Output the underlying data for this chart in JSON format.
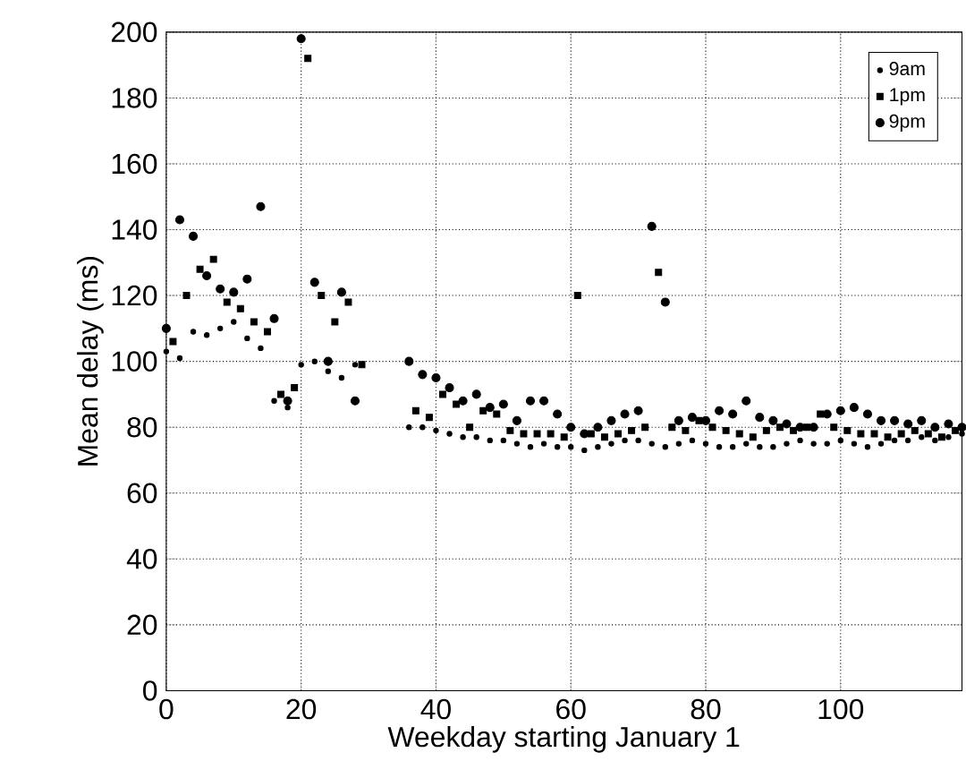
{
  "chart_data": {
    "type": "scatter",
    "xlabel": "Weekday starting January 1",
    "ylabel": "Mean delay (ms)",
    "xlim": [
      0,
      118
    ],
    "ylim": [
      0,
      200
    ],
    "xticks": [
      0,
      20,
      40,
      60,
      80,
      100
    ],
    "yticks": [
      0,
      20,
      40,
      60,
      80,
      100,
      120,
      140,
      160,
      180,
      200
    ],
    "grid": true,
    "legend": "top right",
    "series": [
      {
        "name": "9am",
        "color": "#000000",
        "marker": "circle",
        "x": [
          0,
          2,
          4,
          6,
          8,
          10,
          12,
          14,
          16,
          18,
          20,
          22,
          24,
          26,
          28,
          36,
          38,
          40,
          42,
          44,
          46,
          48,
          50,
          52,
          54,
          56,
          58,
          60,
          62,
          64,
          66,
          68,
          70,
          72,
          74,
          76,
          78,
          80,
          82,
          84,
          86,
          88,
          90,
          92,
          94,
          96,
          98,
          100,
          102,
          104,
          106,
          108,
          110,
          112,
          114,
          116,
          118
        ],
        "values": [
          103,
          101,
          109,
          108,
          110,
          112,
          107,
          104,
          88,
          86,
          99,
          100,
          97,
          95,
          99,
          80,
          80,
          79,
          78,
          77,
          77,
          76,
          76,
          75,
          74,
          75,
          74,
          74,
          73,
          74,
          75,
          76,
          76,
          75,
          74,
          75,
          76,
          75,
          74,
          74,
          75,
          74,
          74,
          75,
          76,
          75,
          75,
          76,
          75,
          74,
          75,
          76,
          76,
          77,
          76,
          77,
          78
        ]
      },
      {
        "name": "1pm",
        "color": "#000000",
        "marker": "square",
        "x": [
          1,
          3,
          5,
          7,
          9,
          11,
          13,
          15,
          17,
          19,
          21,
          23,
          25,
          27,
          29,
          37,
          39,
          41,
          43,
          45,
          47,
          49,
          51,
          53,
          55,
          57,
          59,
          61,
          63,
          65,
          67,
          69,
          71,
          73,
          75,
          77,
          79,
          81,
          83,
          85,
          87,
          89,
          91,
          93,
          95,
          97,
          99,
          101,
          103,
          105,
          107,
          109,
          111,
          113,
          115,
          117
        ],
        "values": [
          106,
          120,
          128,
          131,
          118,
          116,
          112,
          109,
          90,
          92,
          192,
          120,
          112,
          118,
          99,
          85,
          83,
          90,
          87,
          80,
          85,
          84,
          79,
          78,
          78,
          78,
          77,
          120,
          78,
          77,
          78,
          79,
          80,
          127,
          80,
          79,
          82,
          80,
          79,
          78,
          77,
          79,
          80,
          79,
          80,
          84,
          80,
          79,
          78,
          78,
          77,
          78,
          79,
          78,
          77,
          79
        ]
      },
      {
        "name": "9pm",
        "color": "#000000",
        "marker": "circle",
        "x": [
          0,
          2,
          4,
          6,
          8,
          10,
          12,
          14,
          16,
          18,
          20,
          22,
          24,
          26,
          28,
          36,
          38,
          40,
          42,
          44,
          46,
          48,
          50,
          52,
          54,
          56,
          58,
          60,
          62,
          64,
          66,
          68,
          70,
          72,
          74,
          76,
          78,
          80,
          82,
          84,
          86,
          88,
          90,
          92,
          94,
          96,
          98,
          100,
          102,
          104,
          106,
          108,
          110,
          112,
          114,
          116,
          118
        ],
        "values": [
          110,
          143,
          138,
          126,
          122,
          121,
          125,
          147,
          113,
          88,
          198,
          124,
          100,
          121,
          88,
          100,
          96,
          95,
          92,
          88,
          90,
          86,
          87,
          82,
          88,
          88,
          84,
          80,
          78,
          80,
          82,
          84,
          85,
          141,
          118,
          82,
          83,
          82,
          85,
          84,
          88,
          83,
          82,
          81,
          80,
          80,
          84,
          85,
          86,
          84,
          82,
          82,
          81,
          82,
          80,
          81,
          80
        ]
      }
    ]
  }
}
